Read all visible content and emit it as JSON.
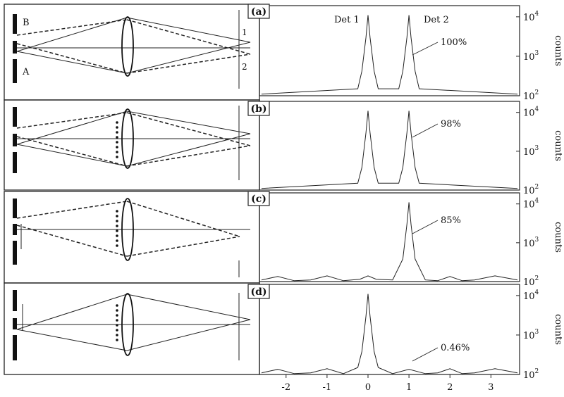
{
  "panels": [
    {
      "id": "a",
      "label": "(a)",
      "percent": "100%",
      "det1_label": "Det 1",
      "det2_label": "Det 2",
      "slit_b_label": "B",
      "slit_a_label": "A",
      "det_mark_1": "1",
      "det_mark_2": "2"
    },
    {
      "id": "b",
      "label": "(b)",
      "percent": "98%"
    },
    {
      "id": "c",
      "label": "(c)",
      "percent": "85%"
    },
    {
      "id": "d",
      "label": "(d)",
      "percent": "0.46%"
    }
  ],
  "axis": {
    "ylabel": "counts",
    "y_ticks": [
      {
        "base": "10",
        "exp": "2"
      },
      {
        "base": "10",
        "exp": "3"
      },
      {
        "base": "10",
        "exp": "4"
      }
    ],
    "x_ticks": [
      "-2",
      "-1",
      "0",
      "1",
      "2",
      "3"
    ]
  },
  "chart_data": [
    {
      "type": "line",
      "panel": "a",
      "yscale": "log",
      "xlim": [
        -2.65,
        3.7
      ],
      "ylim": [
        100,
        15000
      ],
      "series": [
        {
          "x": [
            -2.6,
            -0.25,
            -0.15,
            -0.05,
            0,
            0.05,
            0.15,
            0.25,
            0.75,
            0.85,
            0.95,
            1.0,
            1.05,
            1.15,
            1.25,
            3.65
          ],
          "y": [
            110,
            150,
            420,
            3000,
            11000,
            3000,
            420,
            150,
            150,
            420,
            3000,
            11000,
            3000,
            420,
            150,
            110
          ]
        }
      ]
    },
    {
      "type": "line",
      "panel": "b",
      "yscale": "log",
      "xlim": [
        -2.65,
        3.7
      ],
      "ylim": [
        100,
        15000
      ],
      "series": [
        {
          "x": [
            -2.6,
            -0.25,
            -0.15,
            -0.05,
            0,
            0.05,
            0.15,
            0.25,
            0.75,
            0.85,
            0.95,
            1.0,
            1.05,
            1.15,
            1.25,
            3.65
          ],
          "y": [
            110,
            150,
            380,
            3000,
            11000,
            3000,
            380,
            150,
            150,
            380,
            3000,
            11000,
            3000,
            380,
            150,
            110
          ]
        }
      ]
    },
    {
      "type": "line",
      "panel": "c",
      "yscale": "log",
      "xlim": [
        -2.65,
        3.7
      ],
      "ylim": [
        100,
        15000
      ],
      "series": [
        {
          "x": [
            -2.6,
            -2.2,
            -1.8,
            -1.4,
            -1.0,
            -0.6,
            -0.2,
            0,
            0.2,
            0.6,
            0.85,
            0.95,
            1.0,
            1.05,
            1.15,
            1.4,
            1.7,
            2.0,
            2.3,
            2.6,
            3.1,
            3.65
          ],
          "y": [
            110,
            135,
            105,
            110,
            140,
            105,
            115,
            140,
            115,
            110,
            380,
            3000,
            11000,
            3000,
            380,
            110,
            105,
            135,
            105,
            110,
            140,
            110
          ]
        }
      ]
    },
    {
      "type": "line",
      "panel": "d",
      "yscale": "log",
      "xlim": [
        -2.65,
        3.7
      ],
      "ylim": [
        100,
        15000
      ],
      "series": [
        {
          "x": [
            -2.6,
            -2.2,
            -1.8,
            -1.4,
            -1.0,
            -0.6,
            -0.25,
            -0.15,
            -0.05,
            0,
            0.05,
            0.15,
            0.25,
            0.6,
            1.0,
            1.4,
            1.7,
            2.0,
            2.3,
            2.6,
            3.1,
            3.65
          ],
          "y": [
            110,
            135,
            105,
            110,
            140,
            105,
            150,
            380,
            3000,
            11000,
            3000,
            380,
            150,
            105,
            135,
            105,
            110,
            140,
            105,
            110,
            140,
            110
          ]
        }
      ]
    }
  ]
}
